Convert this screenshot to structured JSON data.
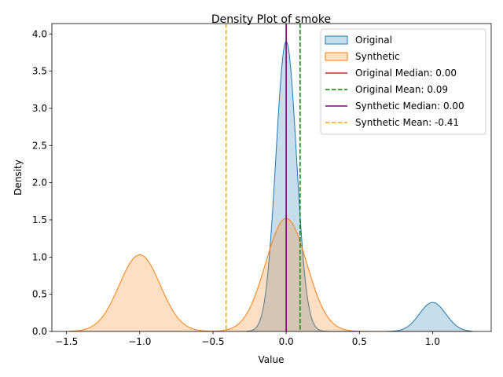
{
  "chart_data": {
    "type": "area",
    "title": "Density Plot of smoke",
    "xlabel": "Value",
    "ylabel": "Density",
    "xlim": [
      -1.6,
      1.4
    ],
    "ylim": [
      0,
      4.14
    ],
    "xticks": [
      -1.5,
      -1.0,
      -0.5,
      0.0,
      0.5,
      1.0
    ],
    "xtick_labels": [
      "−1.5",
      "−1.0",
      "−0.5",
      "0.0",
      "0.5",
      "1.0"
    ],
    "yticks": [
      0.0,
      0.5,
      1.0,
      1.5,
      2.0,
      2.5,
      3.0,
      3.5,
      4.0
    ],
    "ytick_labels": [
      "0.0",
      "0.5",
      "1.0",
      "1.5",
      "2.0",
      "2.5",
      "3.0",
      "3.5",
      "4.0"
    ],
    "grid": false,
    "legend_position": "top-right",
    "series": [
      {
        "name": "Original",
        "kind": "density",
        "color": "#1f77b4",
        "fill": "#aecde8",
        "components": [
          {
            "mean": 0.0,
            "sd": 0.07,
            "height": 3.9,
            "range": [
              -0.27,
              0.5
            ]
          },
          {
            "mean": 1.0,
            "sd": 0.09,
            "height": 0.39,
            "range": [
              0.5,
              1.27
            ]
          }
        ]
      },
      {
        "name": "Synthetic",
        "kind": "density",
        "color": "#ff7f0e",
        "fill": "#ffd2ad",
        "components": [
          {
            "mean": -1.0,
            "sd": 0.14,
            "height": 1.03,
            "range": [
              -1.48,
              1.27
            ]
          },
          {
            "mean": 0.0,
            "sd": 0.14,
            "height": 1.52,
            "range": [
              -1.48,
              1.27
            ]
          }
        ]
      }
    ],
    "reference_lines": [
      {
        "name": "Original Median: 0.00",
        "x": 0.0,
        "color": "#d62728",
        "dash": "solid"
      },
      {
        "name": "Original Mean: 0.09",
        "x": 0.095,
        "color": "#008000",
        "dash": "dashed"
      },
      {
        "name": "Synthetic Median: 0.00",
        "x": 0.0,
        "color": "#800080",
        "dash": "solid"
      },
      {
        "name": "Synthetic Mean: -0.41",
        "x": -0.41,
        "color": "#ffa500",
        "dash": "dashed"
      }
    ]
  }
}
